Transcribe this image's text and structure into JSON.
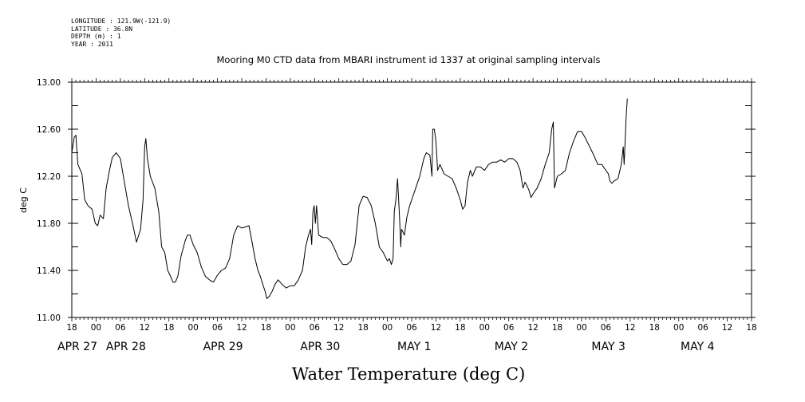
{
  "metadata_lines": [
    "LONGITUDE : 121.9W(-121.9)",
    "LATITUDE : 36.8N",
    "DEPTH (m) : 1",
    "YEAR : 2011"
  ],
  "chart_data": {
    "type": "line",
    "title": "Mooring M0 CTD data from MBARI instrument id 1337 at original sampling intervals",
    "xlabel": "Water Temperature (deg C)",
    "ylabel": "deg C",
    "ylim": [
      11.0,
      13.0
    ],
    "yticks": [
      "11.00",
      "11.40",
      "11.80",
      "12.20",
      "12.60",
      "13.00"
    ],
    "xlim_hours": [
      0,
      168
    ],
    "xtick_hour_labels": [
      "18",
      "00",
      "06",
      "12",
      "18",
      "00",
      "06",
      "12",
      "18",
      "00",
      "06",
      "12",
      "18",
      "00",
      "06",
      "12",
      "18",
      "00",
      "06",
      "12",
      "18",
      "00",
      "06",
      "12",
      "18",
      "00",
      "06",
      "12",
      "18"
    ],
    "date_labels": [
      {
        "hour": 0,
        "text": "APR 27"
      },
      {
        "hour": 12,
        "text": "APR 28"
      },
      {
        "hour": 36,
        "text": "APR 29"
      },
      {
        "hour": 60,
        "text": "APR 30"
      },
      {
        "hour": 84,
        "text": "MAY  1"
      },
      {
        "hour": 108,
        "text": "MAY  2"
      },
      {
        "hour": 132,
        "text": "MAY  3"
      },
      {
        "hour": 154,
        "text": "MAY  4"
      }
    ],
    "grid": false,
    "series": [
      {
        "color": "#000000",
        "points": [
          [
            0,
            12.4
          ],
          [
            0.6,
            12.53
          ],
          [
            1.0,
            12.55
          ],
          [
            1.5,
            12.3
          ],
          [
            2.5,
            12.22
          ],
          [
            3.2,
            12.0
          ],
          [
            4,
            11.95
          ],
          [
            5,
            11.92
          ],
          [
            5.8,
            11.8
          ],
          [
            6.4,
            11.78
          ],
          [
            7,
            11.87
          ],
          [
            7.8,
            11.84
          ],
          [
            8.5,
            12.1
          ],
          [
            9.3,
            12.25
          ],
          [
            10,
            12.36
          ],
          [
            11,
            12.4
          ],
          [
            12,
            12.35
          ],
          [
            13,
            12.15
          ],
          [
            14,
            11.95
          ],
          [
            15,
            11.8
          ],
          [
            16,
            11.64
          ],
          [
            17,
            11.75
          ],
          [
            17.6,
            12.0
          ],
          [
            18,
            12.45
          ],
          [
            18.3,
            12.52
          ],
          [
            18.7,
            12.35
          ],
          [
            19.4,
            12.2
          ],
          [
            20.5,
            12.1
          ],
          [
            21.5,
            11.9
          ],
          [
            22.2,
            11.6
          ],
          [
            23,
            11.55
          ],
          [
            23.7,
            11.4
          ],
          [
            24.4,
            11.35
          ],
          [
            25,
            11.3
          ],
          [
            25.6,
            11.3
          ],
          [
            26.2,
            11.35
          ],
          [
            27,
            11.52
          ],
          [
            28,
            11.65
          ],
          [
            28.6,
            11.7
          ],
          [
            29.2,
            11.7
          ],
          [
            30,
            11.62
          ],
          [
            31,
            11.55
          ],
          [
            32,
            11.43
          ],
          [
            33,
            11.35
          ],
          [
            34,
            11.32
          ],
          [
            35,
            11.3
          ],
          [
            36,
            11.36
          ],
          [
            37,
            11.4
          ],
          [
            38,
            11.42
          ],
          [
            39,
            11.5
          ],
          [
            40,
            11.7
          ],
          [
            41,
            11.78
          ],
          [
            42,
            11.76
          ],
          [
            43,
            11.77
          ],
          [
            43.8,
            11.78
          ],
          [
            44.5,
            11.65
          ],
          [
            45.3,
            11.5
          ],
          [
            46,
            11.4
          ],
          [
            46.6,
            11.35
          ],
          [
            47.2,
            11.28
          ],
          [
            47.8,
            11.22
          ],
          [
            48.2,
            11.16
          ],
          [
            48.8,
            11.18
          ],
          [
            49.5,
            11.22
          ],
          [
            50.2,
            11.28
          ],
          [
            51,
            11.32
          ],
          [
            52,
            11.28
          ],
          [
            53,
            11.25
          ],
          [
            54,
            11.27
          ],
          [
            55,
            11.27
          ],
          [
            56,
            11.32
          ],
          [
            57,
            11.4
          ],
          [
            57.8,
            11.6
          ],
          [
            58.5,
            11.7
          ],
          [
            59,
            11.75
          ],
          [
            59.3,
            11.62
          ],
          [
            59.6,
            11.9
          ],
          [
            59.9,
            11.95
          ],
          [
            60.2,
            11.8
          ],
          [
            60.5,
            11.95
          ],
          [
            61,
            11.7
          ],
          [
            62,
            11.68
          ],
          [
            63,
            11.68
          ],
          [
            64,
            11.65
          ],
          [
            65,
            11.58
          ],
          [
            66,
            11.5
          ],
          [
            67,
            11.45
          ],
          [
            68,
            11.45
          ],
          [
            69,
            11.48
          ],
          [
            70,
            11.62
          ],
          [
            71,
            11.95
          ],
          [
            72,
            12.03
          ],
          [
            73,
            12.02
          ],
          [
            74,
            11.95
          ],
          [
            75,
            11.8
          ],
          [
            76,
            11.6
          ],
          [
            77,
            11.55
          ],
          [
            78,
            11.48
          ],
          [
            78.5,
            11.5
          ],
          [
            79,
            11.45
          ],
          [
            79.4,
            11.5
          ],
          [
            79.7,
            11.9
          ],
          [
            80.1,
            12.0
          ],
          [
            80.5,
            12.18
          ],
          [
            81,
            11.85
          ],
          [
            81.3,
            11.6
          ],
          [
            81.5,
            11.75
          ],
          [
            82.2,
            11.7
          ],
          [
            82.8,
            11.85
          ],
          [
            83.5,
            11.95
          ],
          [
            84,
            12.0
          ],
          [
            85,
            12.1
          ],
          [
            86,
            12.2
          ],
          [
            87,
            12.35
          ],
          [
            87.6,
            12.4
          ],
          [
            88.5,
            12.38
          ],
          [
            89,
            12.2
          ],
          [
            89.2,
            12.6
          ],
          [
            89.6,
            12.6
          ],
          [
            90,
            12.5
          ],
          [
            90.4,
            12.25
          ],
          [
            91,
            12.3
          ],
          [
            92,
            12.22
          ],
          [
            93,
            12.2
          ],
          [
            94,
            12.18
          ],
          [
            95,
            12.1
          ],
          [
            96,
            12.0
          ],
          [
            96.6,
            11.92
          ],
          [
            97.2,
            11.95
          ],
          [
            97.8,
            12.15
          ],
          [
            98.5,
            12.25
          ],
          [
            99,
            12.2
          ],
          [
            100,
            12.28
          ],
          [
            101,
            12.28
          ],
          [
            102,
            12.25
          ],
          [
            103,
            12.3
          ],
          [
            104,
            12.32
          ],
          [
            105,
            12.32
          ],
          [
            106,
            12.34
          ],
          [
            107,
            12.32
          ],
          [
            108,
            12.35
          ],
          [
            109,
            12.35
          ],
          [
            110,
            12.32
          ],
          [
            110.8,
            12.25
          ],
          [
            111.5,
            12.1
          ],
          [
            112,
            12.15
          ],
          [
            112.5,
            12.12
          ],
          [
            113,
            12.08
          ],
          [
            113.5,
            12.02
          ],
          [
            114,
            12.05
          ],
          [
            115,
            12.1
          ],
          [
            116,
            12.18
          ],
          [
            117,
            12.3
          ],
          [
            118,
            12.4
          ],
          [
            118.6,
            12.6
          ],
          [
            119,
            12.66
          ],
          [
            119.3,
            12.1
          ],
          [
            120,
            12.2
          ],
          [
            121,
            12.22
          ],
          [
            122,
            12.25
          ],
          [
            123,
            12.4
          ],
          [
            124,
            12.5
          ],
          [
            125,
            12.58
          ],
          [
            126,
            12.58
          ],
          [
            127,
            12.52
          ],
          [
            128,
            12.45
          ],
          [
            129,
            12.38
          ],
          [
            130,
            12.3
          ],
          [
            131,
            12.3
          ],
          [
            132,
            12.25
          ],
          [
            132.6,
            12.22
          ],
          [
            133,
            12.16
          ],
          [
            133.5,
            12.14
          ],
          [
            134,
            12.16
          ],
          [
            135,
            12.18
          ],
          [
            135.8,
            12.3
          ],
          [
            136.3,
            12.45
          ],
          [
            136.5,
            12.3
          ],
          [
            137,
            12.7
          ],
          [
            137.3,
            12.86
          ]
        ]
      }
    ]
  }
}
